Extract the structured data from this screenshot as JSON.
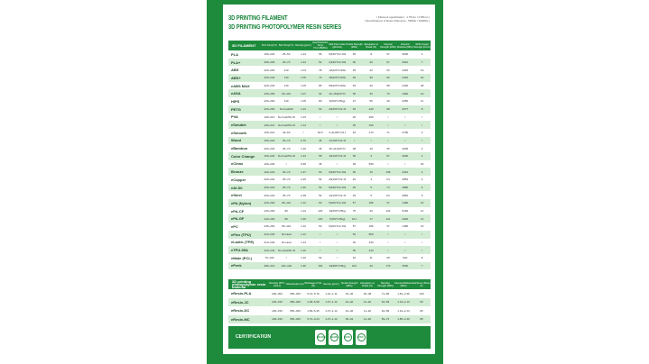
{
  "titles": {
    "line1": "3D PRINTING FILAMENT",
    "line2": "3D PRINTING PHOTOPOLYMER RESIN SERIES",
    "spec1": "| Filament specification : 1.75mm / 2.85mm |",
    "spec2": "| Specifications of Resin Filaments : 500ML / 1000ML |"
  },
  "filament": {
    "headers": [
      "3D FILAMENT",
      "Print Temp(°C)",
      "Bed Temp(°C)",
      "Density (g/cm³)",
      "Heat Distortion Temp (°C,0.45MPa)",
      "Melt Flow Index (g/10min)",
      "Tensile Strength (MPa)",
      "Elongation at Break (%)",
      "Flexural Strength (MPa)",
      "Flexural Modulus (MPa)",
      "IZOD Impact Strength (kJ/m²)"
    ],
    "rows": [
      [
        "PLA",
        "190~220",
        "25~60",
        "1.24",
        "56",
        "5(190°C/2.16kg)",
        "65",
        "8",
        "97",
        "3600",
        "4"
      ],
      [
        "PLA+",
        "205~225",
        "25~70",
        "1.24",
        "52",
        "2(190°C/2.16kg)",
        "60",
        "20",
        "67",
        "3642",
        "7"
      ],
      [
        "ABS",
        "220~260",
        "110",
        "1.04",
        "78",
        "12(220°C/10kg)",
        "45",
        "22",
        "66",
        "2046",
        "19"
      ],
      [
        "ABS+",
        "220~240",
        "110",
        "1.06",
        "73",
        "15(220°C/10kg)",
        "40",
        "30",
        "66",
        "2440",
        "42"
      ],
      [
        "eABS MAX",
        "220~240",
        "110",
        "1.05",
        "85",
        "65(220°C/10kg)",
        "45",
        "30",
        "58",
        "2400",
        "48"
      ],
      [
        "eASA",
        "235~250",
        "90~110",
        "1.07",
        "94",
        "10~15(220°C/10kg)",
        "50",
        "30",
        "70",
        "1960",
        "19"
      ],
      [
        "HIPS",
        "220~260",
        "110",
        "1.05",
        "80",
        "3(200°C/5kg)",
        "27",
        "55",
        "39",
        "2250",
        "11"
      ],
      [
        "PETG",
        "220~250",
        "No heat/60",
        "1.23",
        "64",
        "20(250°C/2.16kg)",
        "45",
        "220",
        "68",
        "2077",
        "8"
      ],
      [
        "PVA",
        "190~210",
        "No heat/50~60",
        "1.23",
        "/",
        "/",
        "20",
        "360",
        "/",
        "/",
        "/"
      ],
      [
        "eSoluble",
        "190~210",
        "No heat/50~60",
        "1.14",
        "/",
        "/",
        "25",
        "160",
        "/",
        "/",
        "/"
      ],
      [
        "eSmooth",
        "190~210",
        "40~60",
        "/",
        "63.5",
        "4~6(190°C/2.16kg)",
        "40",
        "273",
        "71",
        "2790",
        "4"
      ],
      [
        "Wood",
        "190~220",
        "25~70",
        "0.75",
        "45",
        "17(190°C/2.16kg)",
        "/",
        "/",
        "/",
        "/",
        "/"
      ],
      [
        "eBamboo",
        "200~220",
        "25~70",
        "1.20",
        "46",
        "15~41(190°C/2.16kg)",
        "28",
        "10",
        "35",
        "2000",
        "4"
      ],
      [
        "Color Change",
        "190~220",
        "No heat/50~60",
        "1.24",
        "58",
        "10(190°C/2.16kg)",
        "65",
        "3",
        "97",
        "3600",
        "4"
      ],
      [
        "eClean",
        "160~200",
        "/",
        "0.95",
        "45",
        "/",
        "25",
        "550",
        "/",
        "/",
        "29"
      ],
      [
        "Bronze",
        "190~220",
        "25~70",
        "1.27",
        "53",
        "6(190°C/2.16kg)",
        "60",
        "15",
        "108",
        "4442",
        "4"
      ],
      [
        "eCopper",
        "200~220",
        "25~70",
        "2.45",
        "52",
        "20(190°C/2.16kg)",
        "40",
        "4",
        "54",
        "4854",
        "4"
      ],
      [
        "eAl-Sil",
        "200~220",
        "25~70",
        "1.46",
        "52",
        "8(190°C/2.16kg)",
        "45",
        "5",
        "74",
        "4880",
        "4"
      ],
      [
        "eSteel",
        "200~220",
        "25~70",
        "2.48",
        "52",
        "14(190°C/2.16kg)",
        "45",
        "5",
        "63",
        "4852",
        "5"
      ],
      [
        "ePA (Nylon)",
        "220~260",
        "80~110",
        "1.12",
        "50",
        "5(220°C/2.16kg)",
        "57",
        "186",
        "37",
        "1480",
        "15"
      ],
      [
        "ePA-CF",
        "240~260",
        "80",
        "1.24",
        "120",
        "10(250°C/5kg)",
        "75",
        "26",
        "122",
        "5160",
        "12"
      ],
      [
        "ePA-GF",
        "240~260",
        "80",
        "1.30",
        "120",
        "7(250°C/5kg)",
        "101",
        "17",
        "121",
        "4320",
        "14"
      ],
      [
        "ePC",
        "235~260",
        "80~110",
        "1.12",
        "50",
        "5(220°C/2.16kg)",
        "57",
        "186",
        "37",
        "1480",
        "15"
      ],
      [
        "eFlex (TPU)",
        "210~230",
        "No Heat",
        "1.12",
        "/",
        "/",
        "52",
        "800",
        "/",
        "/",
        "/"
      ],
      [
        "eLastic (TPE)",
        "210~230",
        "No Heat",
        "1.14",
        "/",
        "/",
        "32",
        "420",
        "/",
        "/",
        "/"
      ],
      [
        "eTPU-95A",
        "220~240",
        "No Heat/40~60",
        "1.16",
        "/",
        "/",
        "35",
        "420",
        "/",
        "/",
        "/"
      ],
      [
        "eMate (PCL)",
        "70~100",
        "/",
        "1.16",
        "52",
        "/",
        "16",
        "11",
        "28",
        "640",
        "8"
      ],
      [
        "ePeek",
        "380~410",
        "120~140",
        "1.30",
        "152",
        "10(380°C/5kg)",
        "100",
        "40",
        "170",
        "3500",
        "7"
      ]
    ]
  },
  "resin": {
    "headers": [
      "3D printing photopolymer resin material",
      "Viscosity (25°C, mPa·s)",
      "Wavelength (nm)",
      "Shrinkage of Vol. (%)",
      "Density (g/cm³)",
      "Tensile Strength (MPa)",
      "Elongation at Break (%)",
      "Bending Strength (MPa)",
      "Flexural Modulus (MPa)",
      "Hardness (Shore D)"
    ],
    "rows": [
      [
        "eResin-PLA",
        "200~300",
        "355~405",
        "5.21~5.76",
        "1.10~1.11",
        "32~36",
        "36~48",
        "71~80",
        "1.81~2.36",
        "100"
      ],
      [
        "eResin-JC",
        "100~150",
        "355~405",
        "4.38~5.08",
        "1.07~1.12",
        "42~46",
        "11~20",
        "46~59",
        "1.19~2.13",
        "83"
      ],
      [
        "eResin-DC",
        "100~150",
        "355~405",
        "1.89~5.45",
        "1.07~1.12",
        "42~46",
        "11~20",
        "46~59",
        "1.19~2.13",
        "83"
      ],
      [
        "eResin-MC",
        "100~150",
        "355~405",
        "3.72~4.24",
        "1.07~1.12",
        "35~42",
        "11~20",
        "59~73",
        "1.85~2.30",
        "85"
      ]
    ]
  },
  "certification": {
    "label": "CERTIFICATION",
    "logos": [
      "REACH",
      "RoHS",
      "ECO",
      "FSC"
    ]
  },
  "colors": {
    "brand_green": "#1e8a3c",
    "stripe": "#d2ecd4"
  }
}
